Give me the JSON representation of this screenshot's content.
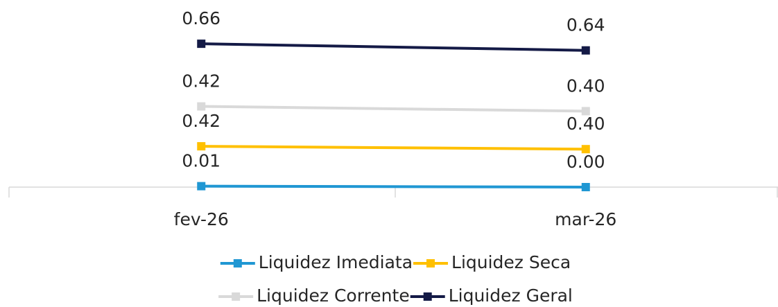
{
  "chart_data": {
    "type": "line",
    "stacked": true,
    "categories": [
      "fev-26",
      "mar-26"
    ],
    "series": [
      {
        "name": "Liquidez Imediata",
        "color": "#2097d3",
        "values": [
          0.01,
          0.0
        ],
        "value_labels": [
          "0.01",
          "0.00"
        ]
      },
      {
        "name": "Liquidez Seca",
        "color": "#ffc000",
        "values": [
          0.42,
          0.4
        ],
        "value_labels": [
          "0.42",
          "0.40"
        ]
      },
      {
        "name": "Liquidez Corrente",
        "color": "#d9d9d9",
        "values": [
          0.42,
          0.4
        ],
        "value_labels": [
          "0.42",
          "0.40"
        ]
      },
      {
        "name": "Liquidez Geral",
        "color": "#141a46",
        "values": [
          0.66,
          0.64
        ],
        "value_labels": [
          "0.66",
          "0.64"
        ]
      }
    ],
    "ylim": [
      0,
      1.6
    ],
    "legend": "bottom"
  }
}
